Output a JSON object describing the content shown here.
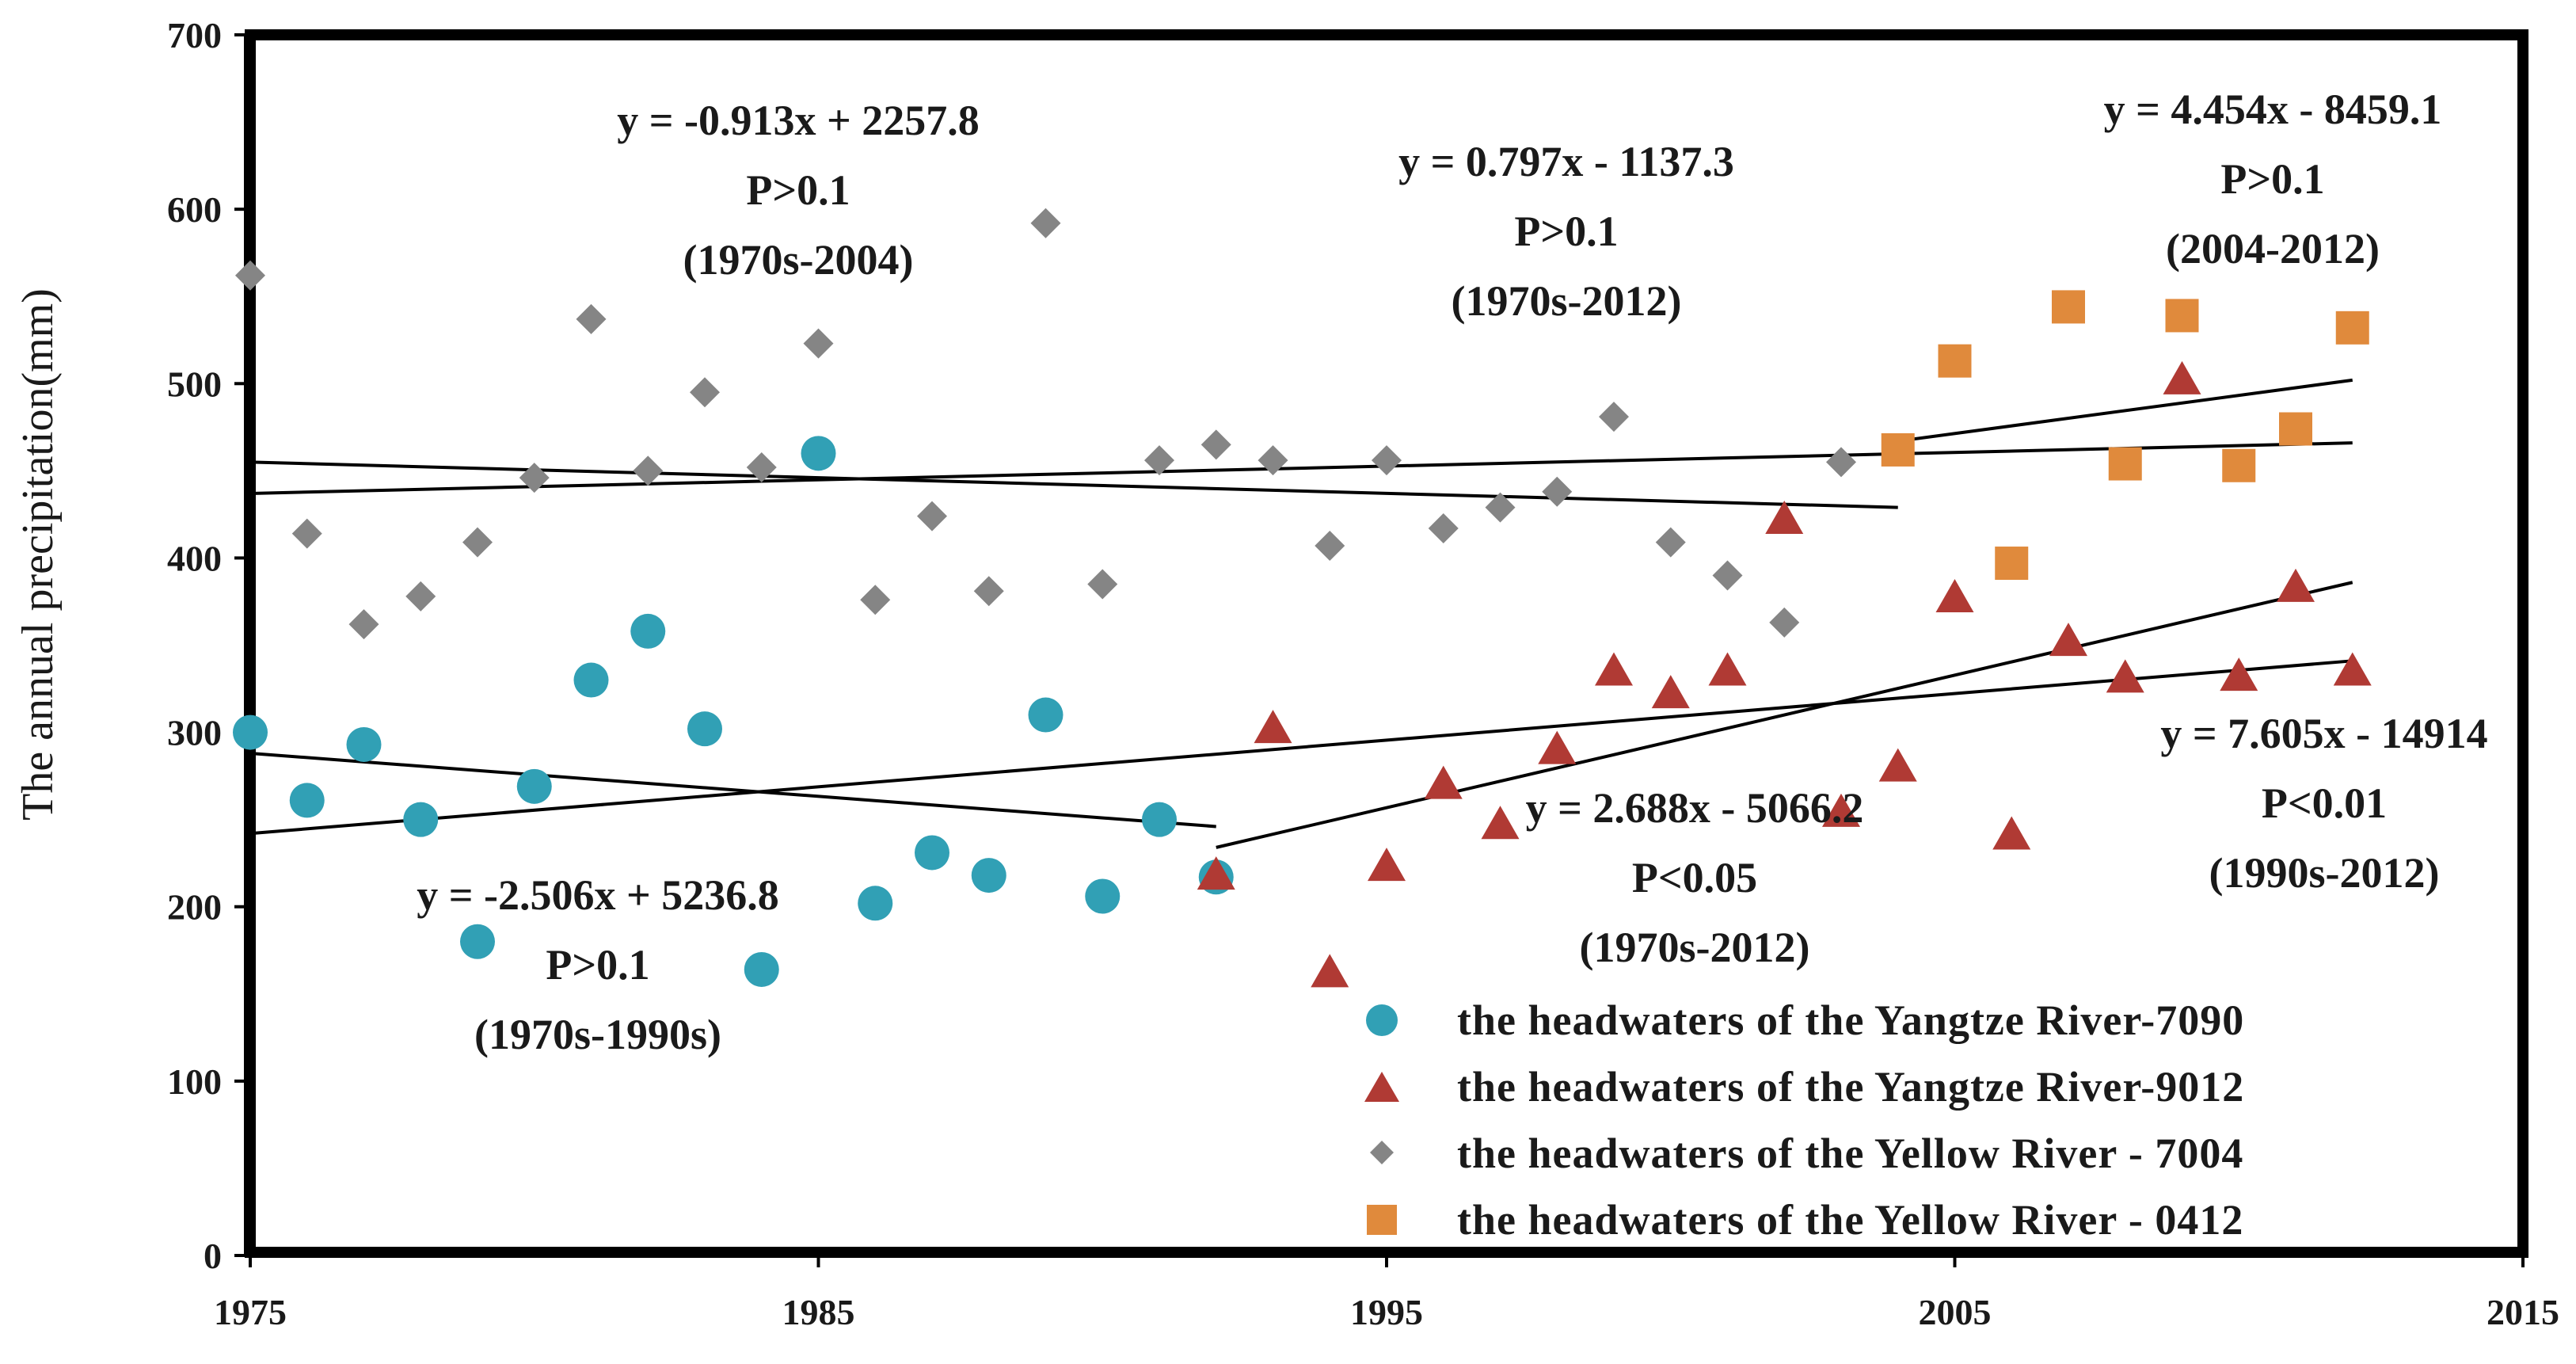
{
  "chart_data": {
    "type": "scatter",
    "title": "",
    "xlabel": "",
    "ylabel": "The annual precipitation(mm)",
    "xlim": [
      1975,
      2015
    ],
    "ylim": [
      0,
      700
    ],
    "x_ticks": [
      "1975",
      "1985",
      "1995",
      "2005",
      "2015"
    ],
    "y_ticks": [
      "0",
      "100",
      "200",
      "300",
      "400",
      "500",
      "600",
      "700"
    ],
    "legend_position": "bottom-right",
    "series": [
      {
        "name": "the headwaters of the Yangtze River-7090",
        "marker": "circle",
        "color": "#31a0b5",
        "points": [
          [
            1975,
            300
          ],
          [
            1976,
            261
          ],
          [
            1977,
            293
          ],
          [
            1978,
            250
          ],
          [
            1979,
            180
          ],
          [
            1980,
            269
          ],
          [
            1981,
            330
          ],
          [
            1982,
            358
          ],
          [
            1983,
            302
          ],
          [
            1984,
            164
          ],
          [
            1985,
            460
          ],
          [
            1986,
            202
          ],
          [
            1987,
            231
          ],
          [
            1988,
            218
          ],
          [
            1989,
            310
          ],
          [
            1990,
            206
          ],
          [
            1991,
            250
          ],
          [
            1992,
            217
          ]
        ]
      },
      {
        "name": "the headwaters of the Yangtze River-9012",
        "marker": "triangle",
        "color": "#b03a34",
        "points": [
          [
            1992,
            218
          ],
          [
            1993,
            302
          ],
          [
            1994,
            162
          ],
          [
            1995,
            223
          ],
          [
            1996,
            270
          ],
          [
            1997,
            247
          ],
          [
            1998,
            290
          ],
          [
            1999,
            335
          ],
          [
            2000,
            322
          ],
          [
            2001,
            335
          ],
          [
            2002,
            422
          ],
          [
            2003,
            254
          ],
          [
            2004,
            280
          ],
          [
            2005,
            377
          ],
          [
            2006,
            241
          ],
          [
            2007,
            352
          ],
          [
            2008,
            331
          ],
          [
            2009,
            502
          ],
          [
            2010,
            332
          ],
          [
            2011,
            383
          ],
          [
            2012,
            335
          ]
        ]
      },
      {
        "name": "the headwaters of the Yellow River - 7004",
        "marker": "diamond",
        "color": "#858585",
        "points": [
          [
            1975,
            562
          ],
          [
            1976,
            414
          ],
          [
            1977,
            362
          ],
          [
            1978,
            378
          ],
          [
            1979,
            409
          ],
          [
            1980,
            446
          ],
          [
            1981,
            537
          ],
          [
            1982,
            450
          ],
          [
            1983,
            495
          ],
          [
            1984,
            452
          ],
          [
            1985,
            523
          ],
          [
            1986,
            376
          ],
          [
            1987,
            424
          ],
          [
            1988,
            381
          ],
          [
            1989,
            592
          ],
          [
            1990,
            385
          ],
          [
            1991,
            456
          ],
          [
            1992,
            465
          ],
          [
            1993,
            456
          ],
          [
            1994,
            407
          ],
          [
            1995,
            456
          ],
          [
            1996,
            417
          ],
          [
            1997,
            429
          ],
          [
            1998,
            438
          ],
          [
            1999,
            481
          ],
          [
            2000,
            409
          ],
          [
            2001,
            390
          ],
          [
            2002,
            363
          ],
          [
            2003,
            455
          ],
          [
            2004,
            462
          ]
        ]
      },
      {
        "name": "the headwaters of the Yellow River - 0412",
        "marker": "square",
        "color": "#e08a3c",
        "points": [
          [
            2004,
            462
          ],
          [
            2005,
            513
          ],
          [
            2006,
            397
          ],
          [
            2007,
            544
          ],
          [
            2008,
            454
          ],
          [
            2009,
            539
          ],
          [
            2010,
            453
          ],
          [
            2011,
            474
          ],
          [
            2012,
            532
          ]
        ]
      }
    ],
    "trendlines": [
      {
        "x": [
          1975,
          2004
        ],
        "y": [
          455,
          429
        ],
        "annotation": [
          "y = -0.913x + 2257.8",
          "P>0.1",
          "(1970s-2004)"
        ]
      },
      {
        "x": [
          1975,
          2012
        ],
        "y": [
          437,
          466
        ],
        "annotation": [
          "y = 0.797x - 1137.3",
          "P>0.1",
          "(1970s-2012)"
        ]
      },
      {
        "x": [
          2004,
          2012
        ],
        "y": [
          467,
          502
        ],
        "annotation": [
          "y = 4.454x - 8459.1",
          "P>0.1",
          "(2004-2012)"
        ]
      },
      {
        "x": [
          1975,
          1992
        ],
        "y": [
          288,
          246
        ],
        "annotation": [
          "y = -2.506x + 5236.8",
          "P>0.1",
          "(1970s-1990s)"
        ]
      },
      {
        "x": [
          1975,
          2012
        ],
        "y": [
          242,
          341
        ],
        "annotation": [
          "y = 2.688x - 5066.2",
          "P<0.05",
          "(1970s-2012)"
        ]
      },
      {
        "x": [
          1992,
          2012
        ],
        "y": [
          234,
          386
        ],
        "annotation": [
          "y = 7.605x - 14914",
          "P<0.01",
          "(1990s-2012)"
        ]
      }
    ]
  }
}
